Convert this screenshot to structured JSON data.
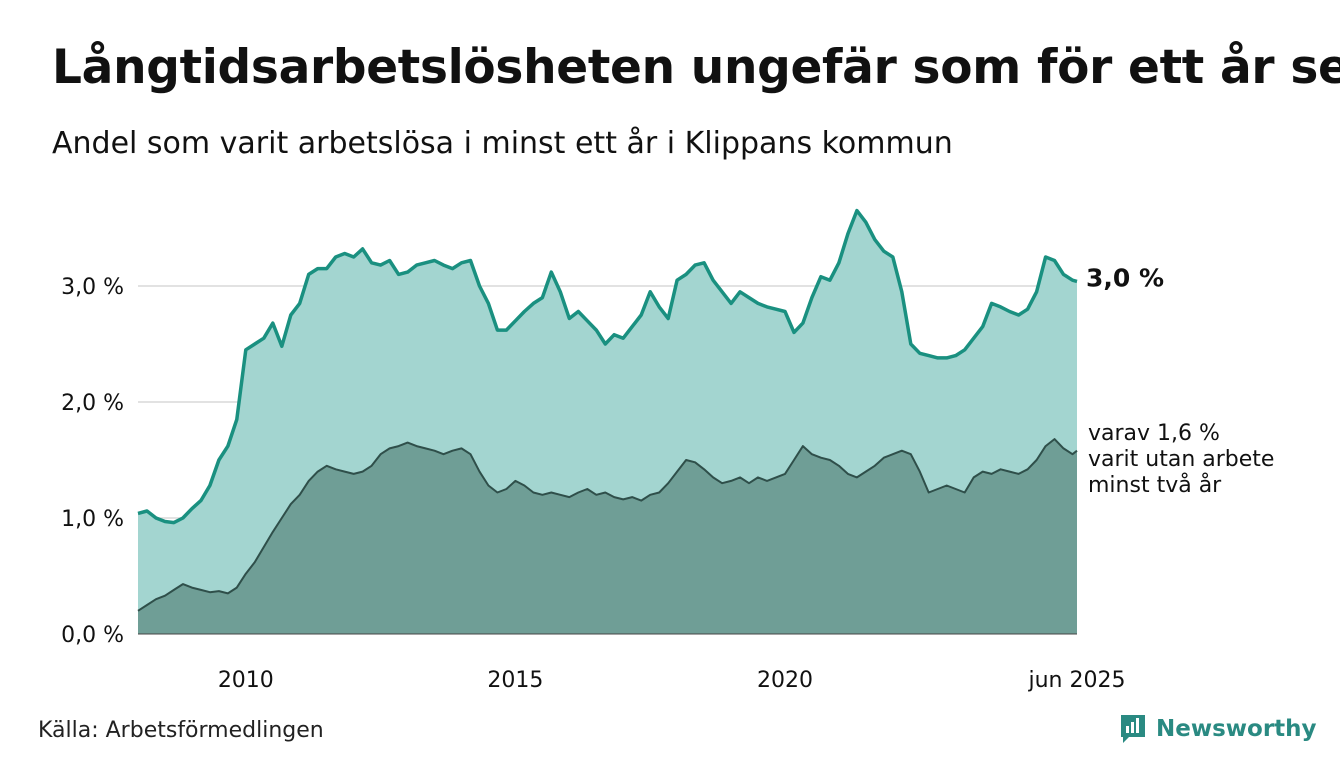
{
  "title": "Långtidsarbetslösheten ungefär som för ett år sen",
  "subtitle": "Andel som varit arbetslösa i minst ett år i Klippans kommun",
  "source": "Källa: Arbetsförmedlingen",
  "brand": {
    "name": "Newsworthy",
    "icon": "newsworthy-logo-icon",
    "color": "#2a8a82"
  },
  "colors": {
    "total_line": "#1a9080",
    "total_fill": "#a3d5d0",
    "long_line": "#2f4f4a",
    "long_fill": "#6f9e96",
    "grid": "#d9d9d9"
  },
  "chart_data": {
    "type": "area",
    "x_range": [
      "2008-01",
      "2025-06"
    ],
    "ylim": [
      0,
      3.7
    ],
    "y_ticks": [
      0,
      1,
      2,
      3
    ],
    "y_tick_labels": [
      "0,0 %",
      "1,0 %",
      "2,0 %",
      "3,0 %"
    ],
    "x_ticks": [
      "2010-01",
      "2015-01",
      "2020-01",
      "2025-06"
    ],
    "x_tick_labels": [
      "2010",
      "2015",
      "2020",
      "jun 2025"
    ],
    "grid": true,
    "annotations": {
      "total_label": "3,0 %",
      "long_label_lines": [
        "varav 1,6 %",
        "varit utan arbete",
        "minst två år"
      ]
    },
    "series": [
      {
        "key": "total",
        "points": [
          [
            "2008-01",
            1.04
          ],
          [
            "2008-03",
            1.06
          ],
          [
            "2008-05",
            1.0
          ],
          [
            "2008-07",
            0.97
          ],
          [
            "2008-09",
            0.96
          ],
          [
            "2008-11",
            1.0
          ],
          [
            "2009-01",
            1.08
          ],
          [
            "2009-03",
            1.15
          ],
          [
            "2009-05",
            1.28
          ],
          [
            "2009-07",
            1.5
          ],
          [
            "2009-09",
            1.62
          ],
          [
            "2009-11",
            1.85
          ],
          [
            "2010-01",
            2.45
          ],
          [
            "2010-03",
            2.5
          ],
          [
            "2010-05",
            2.55
          ],
          [
            "2010-07",
            2.68
          ],
          [
            "2010-09",
            2.48
          ],
          [
            "2010-11",
            2.75
          ],
          [
            "2011-01",
            2.85
          ],
          [
            "2011-03",
            3.1
          ],
          [
            "2011-05",
            3.15
          ],
          [
            "2011-07",
            3.15
          ],
          [
            "2011-09",
            3.25
          ],
          [
            "2011-11",
            3.28
          ],
          [
            "2012-01",
            3.25
          ],
          [
            "2012-03",
            3.32
          ],
          [
            "2012-05",
            3.2
          ],
          [
            "2012-07",
            3.18
          ],
          [
            "2012-09",
            3.22
          ],
          [
            "2012-11",
            3.1
          ],
          [
            "2013-01",
            3.12
          ],
          [
            "2013-03",
            3.18
          ],
          [
            "2013-05",
            3.2
          ],
          [
            "2013-07",
            3.22
          ],
          [
            "2013-09",
            3.18
          ],
          [
            "2013-11",
            3.15
          ],
          [
            "2014-01",
            3.2
          ],
          [
            "2014-03",
            3.22
          ],
          [
            "2014-05",
            3.0
          ],
          [
            "2014-07",
            2.85
          ],
          [
            "2014-09",
            2.62
          ],
          [
            "2014-11",
            2.62
          ],
          [
            "2015-01",
            2.7
          ],
          [
            "2015-03",
            2.78
          ],
          [
            "2015-05",
            2.85
          ],
          [
            "2015-07",
            2.9
          ],
          [
            "2015-09",
            3.12
          ],
          [
            "2015-11",
            2.95
          ],
          [
            "2016-01",
            2.72
          ],
          [
            "2016-03",
            2.78
          ],
          [
            "2016-05",
            2.7
          ],
          [
            "2016-07",
            2.62
          ],
          [
            "2016-09",
            2.5
          ],
          [
            "2016-11",
            2.58
          ],
          [
            "2017-01",
            2.55
          ],
          [
            "2017-03",
            2.65
          ],
          [
            "2017-05",
            2.75
          ],
          [
            "2017-07",
            2.95
          ],
          [
            "2017-09",
            2.82
          ],
          [
            "2017-11",
            2.72
          ],
          [
            "2018-01",
            3.05
          ],
          [
            "2018-03",
            3.1
          ],
          [
            "2018-05",
            3.18
          ],
          [
            "2018-07",
            3.2
          ],
          [
            "2018-09",
            3.05
          ],
          [
            "2018-11",
            2.95
          ],
          [
            "2019-01",
            2.85
          ],
          [
            "2019-03",
            2.95
          ],
          [
            "2019-05",
            2.9
          ],
          [
            "2019-07",
            2.85
          ],
          [
            "2019-09",
            2.82
          ],
          [
            "2019-11",
            2.8
          ],
          [
            "2020-01",
            2.78
          ],
          [
            "2020-03",
            2.6
          ],
          [
            "2020-05",
            2.68
          ],
          [
            "2020-07",
            2.9
          ],
          [
            "2020-09",
            3.08
          ],
          [
            "2020-11",
            3.05
          ],
          [
            "2021-01",
            3.2
          ],
          [
            "2021-03",
            3.45
          ],
          [
            "2021-05",
            3.65
          ],
          [
            "2021-07",
            3.55
          ],
          [
            "2021-09",
            3.4
          ],
          [
            "2021-11",
            3.3
          ],
          [
            "2022-01",
            3.25
          ],
          [
            "2022-03",
            2.95
          ],
          [
            "2022-05",
            2.5
          ],
          [
            "2022-07",
            2.42
          ],
          [
            "2022-09",
            2.4
          ],
          [
            "2022-11",
            2.38
          ],
          [
            "2023-01",
            2.38
          ],
          [
            "2023-03",
            2.4
          ],
          [
            "2023-05",
            2.45
          ],
          [
            "2023-07",
            2.55
          ],
          [
            "2023-09",
            2.65
          ],
          [
            "2023-11",
            2.85
          ],
          [
            "2024-01",
            2.82
          ],
          [
            "2024-03",
            2.78
          ],
          [
            "2024-05",
            2.75
          ],
          [
            "2024-07",
            2.8
          ],
          [
            "2024-09",
            2.95
          ],
          [
            "2024-11",
            3.25
          ],
          [
            "2025-01",
            3.22
          ],
          [
            "2025-03",
            3.1
          ],
          [
            "2025-05",
            3.05
          ],
          [
            "2025-06",
            3.04
          ]
        ]
      },
      {
        "key": "long",
        "points": [
          [
            "2008-01",
            0.2
          ],
          [
            "2008-03",
            0.25
          ],
          [
            "2008-05",
            0.3
          ],
          [
            "2008-07",
            0.33
          ],
          [
            "2008-09",
            0.38
          ],
          [
            "2008-11",
            0.43
          ],
          [
            "2009-01",
            0.4
          ],
          [
            "2009-03",
            0.38
          ],
          [
            "2009-05",
            0.36
          ],
          [
            "2009-07",
            0.37
          ],
          [
            "2009-09",
            0.35
          ],
          [
            "2009-11",
            0.4
          ],
          [
            "2010-01",
            0.52
          ],
          [
            "2010-03",
            0.62
          ],
          [
            "2010-05",
            0.75
          ],
          [
            "2010-07",
            0.88
          ],
          [
            "2010-09",
            1.0
          ],
          [
            "2010-11",
            1.12
          ],
          [
            "2011-01",
            1.2
          ],
          [
            "2011-03",
            1.32
          ],
          [
            "2011-05",
            1.4
          ],
          [
            "2011-07",
            1.45
          ],
          [
            "2011-09",
            1.42
          ],
          [
            "2011-11",
            1.4
          ],
          [
            "2012-01",
            1.38
          ],
          [
            "2012-03",
            1.4
          ],
          [
            "2012-05",
            1.45
          ],
          [
            "2012-07",
            1.55
          ],
          [
            "2012-09",
            1.6
          ],
          [
            "2012-11",
            1.62
          ],
          [
            "2013-01",
            1.65
          ],
          [
            "2013-03",
            1.62
          ],
          [
            "2013-05",
            1.6
          ],
          [
            "2013-07",
            1.58
          ],
          [
            "2013-09",
            1.55
          ],
          [
            "2013-11",
            1.58
          ],
          [
            "2014-01",
            1.6
          ],
          [
            "2014-03",
            1.55
          ],
          [
            "2014-05",
            1.4
          ],
          [
            "2014-07",
            1.28
          ],
          [
            "2014-09",
            1.22
          ],
          [
            "2014-11",
            1.25
          ],
          [
            "2015-01",
            1.32
          ],
          [
            "2015-03",
            1.28
          ],
          [
            "2015-05",
            1.22
          ],
          [
            "2015-07",
            1.2
          ],
          [
            "2015-09",
            1.22
          ],
          [
            "2015-11",
            1.2
          ],
          [
            "2016-01",
            1.18
          ],
          [
            "2016-03",
            1.22
          ],
          [
            "2016-05",
            1.25
          ],
          [
            "2016-07",
            1.2
          ],
          [
            "2016-09",
            1.22
          ],
          [
            "2016-11",
            1.18
          ],
          [
            "2017-01",
            1.16
          ],
          [
            "2017-03",
            1.18
          ],
          [
            "2017-05",
            1.15
          ],
          [
            "2017-07",
            1.2
          ],
          [
            "2017-09",
            1.22
          ],
          [
            "2017-11",
            1.3
          ],
          [
            "2018-01",
            1.4
          ],
          [
            "2018-03",
            1.5
          ],
          [
            "2018-05",
            1.48
          ],
          [
            "2018-07",
            1.42
          ],
          [
            "2018-09",
            1.35
          ],
          [
            "2018-11",
            1.3
          ],
          [
            "2019-01",
            1.32
          ],
          [
            "2019-03",
            1.35
          ],
          [
            "2019-05",
            1.3
          ],
          [
            "2019-07",
            1.35
          ],
          [
            "2019-09",
            1.32
          ],
          [
            "2019-11",
            1.35
          ],
          [
            "2020-01",
            1.38
          ],
          [
            "2020-03",
            1.5
          ],
          [
            "2020-05",
            1.62
          ],
          [
            "2020-07",
            1.55
          ],
          [
            "2020-09",
            1.52
          ],
          [
            "2020-11",
            1.5
          ],
          [
            "2021-01",
            1.45
          ],
          [
            "2021-03",
            1.38
          ],
          [
            "2021-05",
            1.35
          ],
          [
            "2021-07",
            1.4
          ],
          [
            "2021-09",
            1.45
          ],
          [
            "2021-11",
            1.52
          ],
          [
            "2022-01",
            1.55
          ],
          [
            "2022-03",
            1.58
          ],
          [
            "2022-05",
            1.55
          ],
          [
            "2022-07",
            1.4
          ],
          [
            "2022-09",
            1.22
          ],
          [
            "2022-11",
            1.25
          ],
          [
            "2023-01",
            1.28
          ],
          [
            "2023-03",
            1.25
          ],
          [
            "2023-05",
            1.22
          ],
          [
            "2023-07",
            1.35
          ],
          [
            "2023-09",
            1.4
          ],
          [
            "2023-11",
            1.38
          ],
          [
            "2024-01",
            1.42
          ],
          [
            "2024-03",
            1.4
          ],
          [
            "2024-05",
            1.38
          ],
          [
            "2024-07",
            1.42
          ],
          [
            "2024-09",
            1.5
          ],
          [
            "2024-11",
            1.62
          ],
          [
            "2025-01",
            1.68
          ],
          [
            "2025-03",
            1.6
          ],
          [
            "2025-05",
            1.55
          ],
          [
            "2025-06",
            1.58
          ]
        ]
      }
    ]
  }
}
